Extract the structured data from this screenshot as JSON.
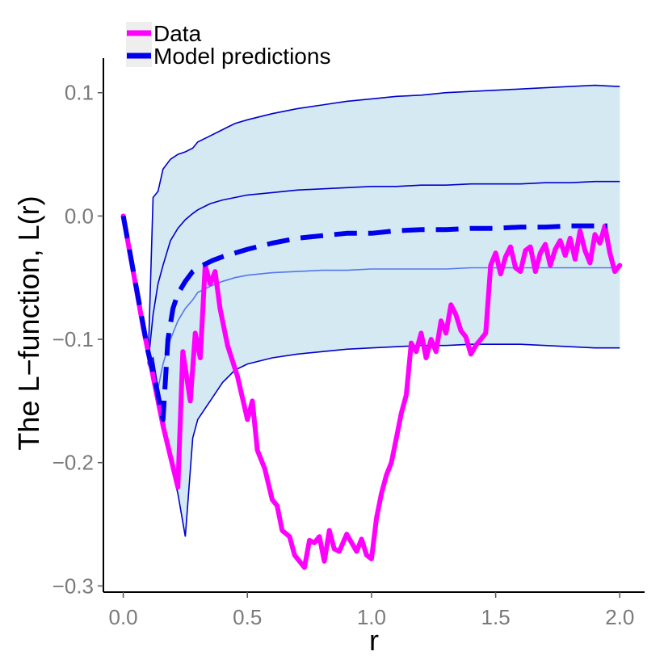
{
  "chart_data": {
    "type": "line",
    "title": "",
    "xlabel": "r",
    "ylabel": "The L−function, L(r)",
    "xlim": [
      -0.08,
      2.1
    ],
    "ylim": [
      -0.305,
      0.128
    ],
    "x_ticks": [
      0.0,
      0.5,
      1.0,
      1.5,
      2.0
    ],
    "x_tick_labels": [
      "0.0",
      "0.5",
      "1.0",
      "1.5",
      "2.0"
    ],
    "y_ticks": [
      -0.3,
      -0.2,
      -0.1,
      0.0,
      0.1
    ],
    "y_tick_labels": [
      "−0.3",
      "−0.2",
      "−0.1",
      "0.0",
      "0.1"
    ],
    "grid": false,
    "legend_position": "top-left",
    "colors": {
      "data": "#ff00ff",
      "model": "#0000ee",
      "envelope_fill": "#d4e9f2",
      "envelope_line": "#0000cc",
      "median": "#5577ee"
    },
    "series": [
      {
        "name": "Data",
        "style": "solid",
        "x": [
          0.0,
          0.08,
          0.12,
          0.16,
          0.19,
          0.22,
          0.24,
          0.27,
          0.29,
          0.31,
          0.33,
          0.35,
          0.37,
          0.39,
          0.42,
          0.46,
          0.5,
          0.52,
          0.54,
          0.57,
          0.6,
          0.62,
          0.64,
          0.67,
          0.69,
          0.71,
          0.73,
          0.75,
          0.77,
          0.79,
          0.81,
          0.83,
          0.85,
          0.87,
          0.9,
          0.92,
          0.94,
          0.96,
          0.98,
          1.0,
          1.02,
          1.04,
          1.06,
          1.08,
          1.1,
          1.12,
          1.14,
          1.16,
          1.18,
          1.2,
          1.22,
          1.24,
          1.26,
          1.28,
          1.3,
          1.32,
          1.34,
          1.36,
          1.38,
          1.4,
          1.42,
          1.44,
          1.46,
          1.48,
          1.5,
          1.52,
          1.54,
          1.56,
          1.58,
          1.6,
          1.62,
          1.64,
          1.66,
          1.68,
          1.7,
          1.72,
          1.74,
          1.76,
          1.78,
          1.8,
          1.82,
          1.84,
          1.86,
          1.88,
          1.9,
          1.92,
          1.94,
          1.96,
          1.98,
          2.0
        ],
        "values": [
          0.0,
          -0.09,
          -0.13,
          -0.17,
          -0.195,
          -0.22,
          -0.11,
          -0.15,
          -0.095,
          -0.115,
          -0.04,
          -0.055,
          -0.045,
          -0.075,
          -0.105,
          -0.13,
          -0.165,
          -0.15,
          -0.19,
          -0.205,
          -0.23,
          -0.235,
          -0.255,
          -0.26,
          -0.275,
          -0.28,
          -0.285,
          -0.263,
          -0.265,
          -0.26,
          -0.28,
          -0.255,
          -0.27,
          -0.272,
          -0.258,
          -0.265,
          -0.272,
          -0.262,
          -0.275,
          -0.278,
          -0.245,
          -0.225,
          -0.21,
          -0.2,
          -0.18,
          -0.16,
          -0.145,
          -0.103,
          -0.11,
          -0.095,
          -0.115,
          -0.1,
          -0.11,
          -0.085,
          -0.095,
          -0.072,
          -0.08,
          -0.093,
          -0.098,
          -0.112,
          -0.105,
          -0.1,
          -0.095,
          -0.04,
          -0.03,
          -0.047,
          -0.033,
          -0.025,
          -0.042,
          -0.045,
          -0.028,
          -0.025,
          -0.045,
          -0.03,
          -0.023,
          -0.04,
          -0.027,
          -0.02,
          -0.032,
          -0.018,
          -0.035,
          -0.012,
          -0.028,
          -0.038,
          -0.015,
          -0.022,
          -0.008,
          -0.03,
          -0.045,
          -0.04
        ]
      },
      {
        "name": "Model predictions",
        "style": "dashed",
        "x": [
          0.0,
          0.1,
          0.13,
          0.16,
          0.18,
          0.2,
          0.22,
          0.25,
          0.28,
          0.32,
          0.36,
          0.4,
          0.45,
          0.5,
          0.6,
          0.7,
          0.8,
          0.9,
          1.0,
          1.1,
          1.2,
          1.3,
          1.4,
          1.5,
          1.6,
          1.7,
          1.8,
          1.9,
          1.95
        ],
        "values": [
          0.0,
          -0.11,
          -0.135,
          -0.165,
          -0.1,
          -0.075,
          -0.063,
          -0.053,
          -0.045,
          -0.04,
          -0.036,
          -0.033,
          -0.03,
          -0.027,
          -0.022,
          -0.018,
          -0.016,
          -0.014,
          -0.014,
          -0.012,
          -0.011,
          -0.011,
          -0.01,
          -0.01,
          -0.009,
          -0.009,
          -0.008,
          -0.008,
          -0.008
        ]
      }
    ],
    "envelope": {
      "x": [
        0.1,
        0.12,
        0.14,
        0.16,
        0.19,
        0.22,
        0.25,
        0.28,
        0.3,
        0.35,
        0.4,
        0.45,
        0.5,
        0.6,
        0.7,
        0.8,
        0.9,
        1.0,
        1.1,
        1.2,
        1.3,
        1.4,
        1.5,
        1.6,
        1.7,
        1.8,
        1.9,
        2.0
      ],
      "upper": [
        -0.12,
        0.015,
        0.02,
        0.038,
        0.046,
        0.05,
        0.052,
        0.055,
        0.06,
        0.065,
        0.07,
        0.075,
        0.078,
        0.083,
        0.087,
        0.09,
        0.093,
        0.095,
        0.097,
        0.098,
        0.1,
        0.101,
        0.102,
        0.103,
        0.104,
        0.105,
        0.106,
        0.105
      ],
      "lower": [
        -0.12,
        -0.115,
        -0.14,
        -0.16,
        -0.2,
        -0.225,
        -0.26,
        -0.18,
        -0.165,
        -0.15,
        -0.135,
        -0.125,
        -0.12,
        -0.115,
        -0.112,
        -0.11,
        -0.108,
        -0.107,
        -0.106,
        -0.105,
        -0.105,
        -0.104,
        -0.104,
        -0.104,
        -0.105,
        -0.106,
        -0.107,
        -0.107
      ],
      "upper_inner": [
        -0.12,
        -0.08,
        -0.055,
        -0.04,
        -0.02,
        -0.01,
        -0.003,
        0.002,
        0.005,
        0.01,
        0.013,
        0.015,
        0.017,
        0.019,
        0.021,
        0.022,
        0.023,
        0.024,
        0.024,
        0.025,
        0.025,
        0.026,
        0.026,
        0.026,
        0.027,
        0.027,
        0.028,
        0.028
      ],
      "median": [
        -0.12,
        -0.13,
        -0.14,
        -0.12,
        -0.1,
        -0.085,
        -0.075,
        -0.068,
        -0.062,
        -0.057,
        -0.053,
        -0.05,
        -0.048,
        -0.046,
        -0.045,
        -0.044,
        -0.044,
        -0.043,
        -0.043,
        -0.043,
        -0.043,
        -0.042,
        -0.042,
        -0.042,
        -0.042,
        -0.042,
        -0.042,
        -0.042
      ]
    }
  }
}
